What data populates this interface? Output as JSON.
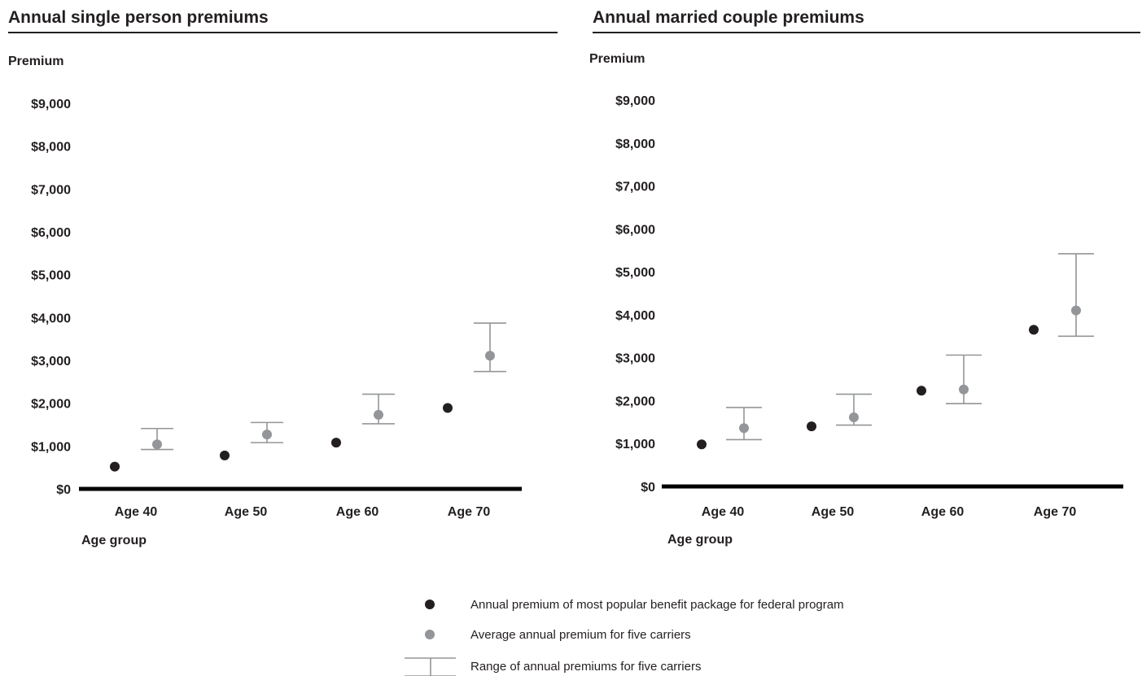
{
  "chart_data": [
    {
      "type": "scatter",
      "title": "Annual single person premiums",
      "ylabel": "Premium",
      "xlabel": "Age group",
      "categories": [
        "Age 40",
        "Age 50",
        "Age 60",
        "Age 70"
      ],
      "yticks": [
        "$0",
        "$1,000",
        "$2,000",
        "$3,000",
        "$4,000",
        "$5,000",
        "$6,000",
        "$7,000",
        "$8,000",
        "$9,000"
      ],
      "ylim": [
        0,
        9000
      ],
      "series": [
        {
          "key": "federal",
          "color": "#231f20",
          "values": [
            520,
            780,
            1080,
            1890
          ]
        },
        {
          "key": "average",
          "color": "#939598",
          "values": [
            1040,
            1270,
            1730,
            3110
          ]
        },
        {
          "key": "range",
          "color": "#939598",
          "low": [
            920,
            1080,
            1520,
            2740
          ],
          "high": [
            1410,
            1550,
            2210,
            3870
          ]
        }
      ]
    },
    {
      "type": "scatter",
      "title": "Annual married couple premiums",
      "ylabel": "Premium",
      "xlabel": "Age group",
      "categories": [
        "Age 40",
        "Age 50",
        "Age 60",
        "Age 70"
      ],
      "yticks": [
        "$0",
        "$1,000",
        "$2,000",
        "$3,000",
        "$4,000",
        "$5,000",
        "$6,000",
        "$7,000",
        "$8,000",
        "$9,000"
      ],
      "ylim": [
        0,
        9000
      ],
      "series": [
        {
          "key": "federal",
          "color": "#231f20",
          "values": [
            980,
            1400,
            2230,
            3650
          ]
        },
        {
          "key": "average",
          "color": "#939598",
          "values": [
            1360,
            1610,
            2260,
            4100
          ]
        },
        {
          "key": "range",
          "color": "#939598",
          "low": [
            1090,
            1430,
            1930,
            3500
          ],
          "high": [
            1840,
            2150,
            3060,
            5420
          ]
        }
      ]
    }
  ],
  "legend": {
    "items": [
      {
        "key": "federal",
        "marker": "dot",
        "color": "#231f20",
        "label": "Annual premium of most popular benefit package for federal program"
      },
      {
        "key": "average",
        "marker": "dot",
        "color": "#939598",
        "label": "Average annual premium for five carriers"
      },
      {
        "key": "range",
        "marker": "range",
        "color": "#939598",
        "label": "Range of annual premiums for five carriers"
      }
    ]
  }
}
